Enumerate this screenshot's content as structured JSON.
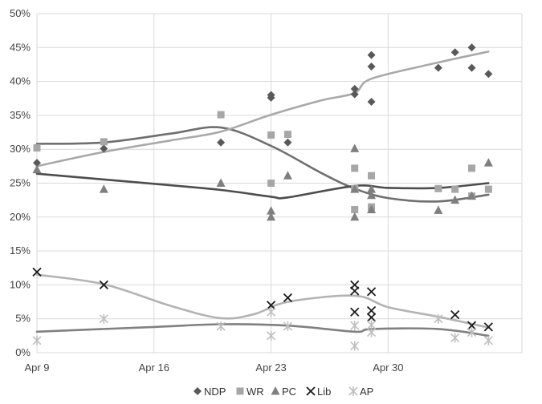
{
  "chart_data": {
    "type": "scatter",
    "title": "",
    "xlabel": "",
    "ylabel": "",
    "ylim": [
      0,
      50
    ],
    "xlim": [
      "2016-04-09",
      "2016-05-08"
    ],
    "y_ticks": [
      {
        "value": 0,
        "label": "0%"
      },
      {
        "value": 5,
        "label": "5%"
      },
      {
        "value": 10,
        "label": "10%"
      },
      {
        "value": 15,
        "label": "15%"
      },
      {
        "value": 20,
        "label": "20%"
      },
      {
        "value": 25,
        "label": "25%"
      },
      {
        "value": 30,
        "label": "30%"
      },
      {
        "value": 35,
        "label": "35%"
      },
      {
        "value": 40,
        "label": "40%"
      },
      {
        "value": 45,
        "label": "45%"
      },
      {
        "value": 50,
        "label": "50%"
      }
    ],
    "x_ticks": [
      {
        "value": "2016-04-09",
        "label": "Apr 9"
      },
      {
        "value": "2016-04-16",
        "label": "Apr 16"
      },
      {
        "value": "2016-04-23",
        "label": "Apr 23"
      },
      {
        "value": "2016-04-30",
        "label": "Apr 30"
      }
    ],
    "grid": true,
    "legend_position": "bottom",
    "series": [
      {
        "name": "NDP",
        "marker": "diamond",
        "color": "#595959",
        "points": [
          [
            "2016-04-09",
            28
          ],
          [
            "2016-04-13",
            30.1
          ],
          [
            "2016-04-20",
            31
          ],
          [
            "2016-04-23",
            38
          ],
          [
            "2016-04-23",
            37.6
          ],
          [
            "2016-04-24",
            31
          ],
          [
            "2016-04-28",
            38.9
          ],
          [
            "2016-04-28",
            38.1
          ],
          [
            "2016-04-29",
            43.9
          ],
          [
            "2016-04-29",
            42.2
          ],
          [
            "2016-04-29",
            37
          ],
          [
            "2016-05-03",
            42
          ],
          [
            "2016-05-04",
            44.3
          ],
          [
            "2016-05-05",
            45
          ],
          [
            "2016-05-05",
            42
          ],
          [
            "2016-05-06",
            41.1
          ]
        ],
        "trend": [
          [
            "2016-04-09",
            30.8
          ],
          [
            "2016-04-13",
            31
          ],
          [
            "2016-04-17",
            32.3
          ],
          [
            "2016-04-20",
            33.2
          ],
          [
            "2016-04-23",
            30.5
          ],
          [
            "2016-04-26",
            26.5
          ],
          [
            "2016-04-28",
            24.2
          ],
          [
            "2016-04-30",
            22.8
          ],
          [
            "2016-05-03",
            22.3
          ],
          [
            "2016-05-06",
            23.3
          ]
        ]
      },
      {
        "name": "WR",
        "marker": "square",
        "color": "#a6a6a6",
        "points": [
          [
            "2016-04-09",
            30.2
          ],
          [
            "2016-04-13",
            31.1
          ],
          [
            "2016-04-20",
            35.1
          ],
          [
            "2016-04-23",
            32.1
          ],
          [
            "2016-04-23",
            25
          ],
          [
            "2016-04-24",
            32.2
          ],
          [
            "2016-04-28",
            27.2
          ],
          [
            "2016-04-28",
            24.2
          ],
          [
            "2016-04-28",
            21.1
          ],
          [
            "2016-04-29",
            26.1
          ],
          [
            "2016-04-29",
            21.5
          ],
          [
            "2016-05-03",
            24.2
          ],
          [
            "2016-05-04",
            24.1
          ],
          [
            "2016-05-05",
            27.2
          ],
          [
            "2016-05-05",
            23.1
          ],
          [
            "2016-05-06",
            24.1
          ]
        ],
        "trend": [
          [
            "2016-04-09",
            27.5
          ],
          [
            "2016-04-13",
            29.6
          ],
          [
            "2016-04-17",
            31.3
          ],
          [
            "2016-04-20",
            32.6
          ],
          [
            "2016-04-23",
            35.1
          ],
          [
            "2016-04-26",
            37.2
          ],
          [
            "2016-04-28",
            38.3
          ],
          [
            "2016-04-29",
            40.4
          ],
          [
            "2016-05-03",
            42.8
          ],
          [
            "2016-05-06",
            44.4
          ]
        ]
      },
      {
        "name": "PC",
        "marker": "triangle",
        "color": "#7f7f7f",
        "points": [
          [
            "2016-04-09",
            27
          ],
          [
            "2016-04-13",
            24.1
          ],
          [
            "2016-04-20",
            25
          ],
          [
            "2016-04-23",
            20.9
          ],
          [
            "2016-04-23",
            20
          ],
          [
            "2016-04-24",
            26.1
          ],
          [
            "2016-04-28",
            30.1
          ],
          [
            "2016-04-28",
            24.1
          ],
          [
            "2016-04-28",
            20
          ],
          [
            "2016-04-29",
            24.1
          ],
          [
            "2016-04-29",
            23.2
          ],
          [
            "2016-04-29",
            21.1
          ],
          [
            "2016-05-03",
            21
          ],
          [
            "2016-05-04",
            22.5
          ],
          [
            "2016-05-05",
            23.1
          ],
          [
            "2016-05-06",
            28
          ]
        ],
        "trend": [
          [
            "2016-04-09",
            26.4
          ],
          [
            "2016-04-16",
            24.9
          ],
          [
            "2016-04-20",
            24
          ],
          [
            "2016-04-23",
            23
          ],
          [
            "2016-04-24",
            22.9
          ],
          [
            "2016-04-28",
            24.6
          ],
          [
            "2016-04-30",
            24.3
          ],
          [
            "2016-05-03",
            24.3
          ],
          [
            "2016-05-06",
            25
          ]
        ]
      },
      {
        "name": "Lib",
        "marker": "x",
        "color": "#1a1a1a",
        "points": [
          [
            "2016-04-09",
            11.9
          ],
          [
            "2016-04-13",
            10
          ],
          [
            "2016-04-23",
            7
          ],
          [
            "2016-04-24",
            8.1
          ],
          [
            "2016-04-28",
            10
          ],
          [
            "2016-04-28",
            9.1
          ],
          [
            "2016-04-28",
            6
          ],
          [
            "2016-04-29",
            9
          ],
          [
            "2016-04-29",
            6.2
          ],
          [
            "2016-04-29",
            5.2
          ],
          [
            "2016-05-04",
            5.6
          ],
          [
            "2016-05-05",
            4
          ],
          [
            "2016-05-06",
            3.8
          ]
        ],
        "trend": [
          [
            "2016-04-09",
            11.5
          ],
          [
            "2016-04-13",
            10.1
          ],
          [
            "2016-04-17",
            6.9
          ],
          [
            "2016-04-20",
            5.1
          ],
          [
            "2016-04-22",
            5.7
          ],
          [
            "2016-04-24",
            7.5
          ],
          [
            "2016-04-28",
            8.4
          ],
          [
            "2016-04-30",
            6.7
          ],
          [
            "2016-05-03",
            5.3
          ],
          [
            "2016-05-06",
            3.7
          ]
        ]
      },
      {
        "name": "AP",
        "marker": "asterisk",
        "color": "#bfbfbf",
        "points": [
          [
            "2016-04-09",
            1.8
          ],
          [
            "2016-04-13",
            5
          ],
          [
            "2016-04-20",
            3.9
          ],
          [
            "2016-04-23",
            6
          ],
          [
            "2016-04-23",
            2.5
          ],
          [
            "2016-04-24",
            3.9
          ],
          [
            "2016-04-28",
            4
          ],
          [
            "2016-04-28",
            1
          ],
          [
            "2016-04-29",
            4.1
          ],
          [
            "2016-04-29",
            3
          ],
          [
            "2016-05-03",
            5
          ],
          [
            "2016-05-04",
            2.2
          ],
          [
            "2016-05-05",
            3
          ],
          [
            "2016-05-06",
            1.8
          ]
        ],
        "trend": [
          [
            "2016-04-09",
            3.1
          ],
          [
            "2016-04-16",
            3.8
          ],
          [
            "2016-04-20",
            4.2
          ],
          [
            "2016-04-24",
            4
          ],
          [
            "2016-04-28",
            3.1
          ],
          [
            "2016-04-29",
            3.5
          ],
          [
            "2016-05-03",
            3.5
          ],
          [
            "2016-05-06",
            2.5
          ]
        ]
      }
    ]
  }
}
